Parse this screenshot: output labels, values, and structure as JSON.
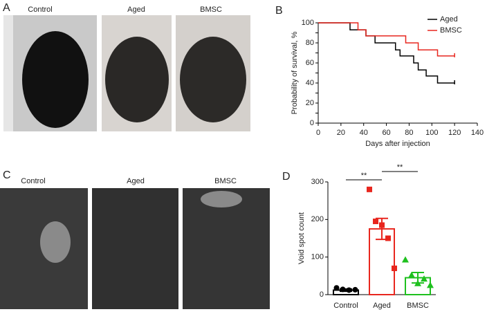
{
  "figure": {
    "panel_a": {
      "letter": "A",
      "labels": [
        "Control",
        "Aged",
        "BMSC"
      ]
    },
    "panel_c": {
      "letter": "C",
      "labels": [
        "Control",
        "Aged",
        "BMSC"
      ]
    }
  },
  "chart_data": [
    {
      "letter": "B",
      "type": "step",
      "xlabel": "Days after injection",
      "ylabel": "Probability of survival, %",
      "xlim": [
        0,
        140
      ],
      "xticks": [
        0,
        20,
        40,
        60,
        80,
        100,
        120,
        140
      ],
      "ylim": [
        0,
        100
      ],
      "yticks": [
        0,
        10,
        20,
        30,
        40,
        50,
        60,
        70,
        80,
        90,
        100
      ],
      "legend": "upper right",
      "series": [
        {
          "name": "Aged",
          "color": "#000000",
          "x": [
            0,
            28,
            42,
            50,
            68,
            72,
            84,
            88,
            95,
            105,
            120
          ],
          "values": [
            100,
            93,
            87,
            80,
            73,
            67,
            60,
            53,
            47,
            40,
            40
          ]
        },
        {
          "name": "BMSC",
          "color": "#e8261e",
          "x": [
            0,
            35,
            42,
            77,
            88,
            105,
            120
          ],
          "values": [
            100,
            93,
            87,
            80,
            73,
            67,
            67
          ]
        }
      ]
    },
    {
      "letter": "D",
      "type": "bar_scatter",
      "ylabel": "Void spot count",
      "categories": [
        "Control",
        "Aged",
        "BMSC"
      ],
      "ylim": [
        0,
        300
      ],
      "yticks": [
        0,
        100,
        200,
        300
      ],
      "series": [
        {
          "name": "Control",
          "color": "#000000",
          "marker": "circle",
          "value": 12,
          "error": 3,
          "points": [
            18,
            14,
            12,
            13
          ]
        },
        {
          "name": "Aged",
          "color": "#e8261e",
          "marker": "square",
          "value": 175,
          "error": 28,
          "points": [
            280,
            195,
            185,
            150,
            70
          ]
        },
        {
          "name": "BMSC",
          "color": "#1ec01e",
          "marker": "triangle",
          "value": 45,
          "error": 14,
          "points": [
            93,
            52,
            30,
            42,
            25
          ]
        }
      ],
      "annotations": [
        "**",
        "**"
      ]
    }
  ]
}
